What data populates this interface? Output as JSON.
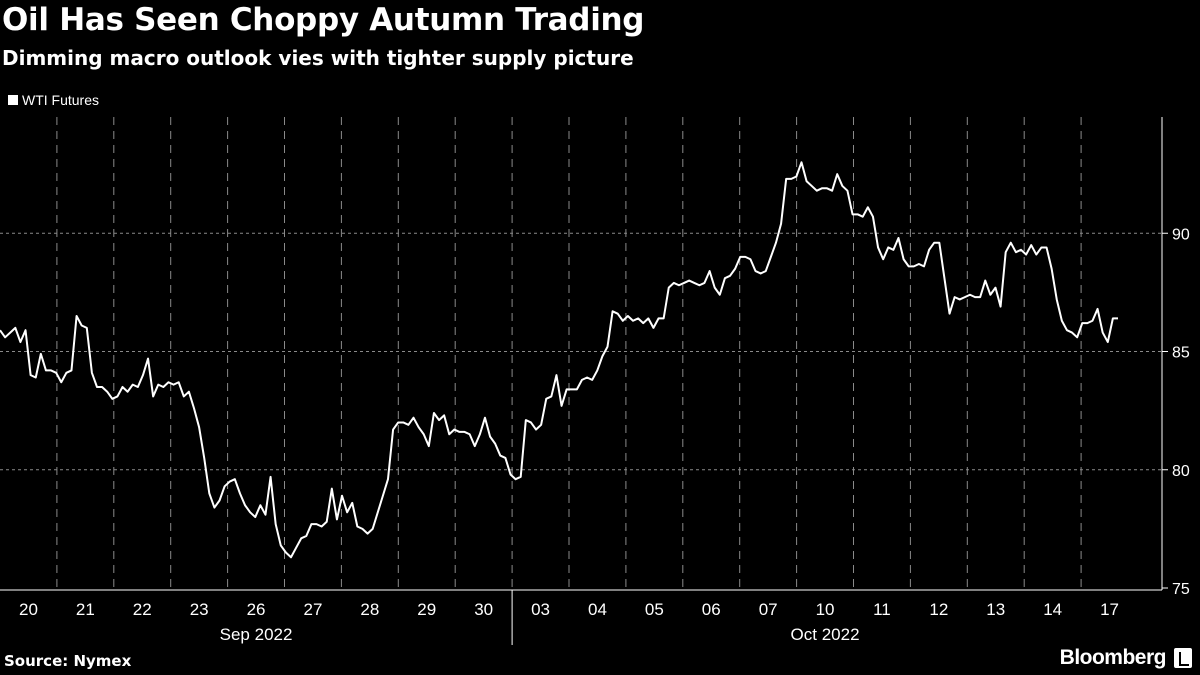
{
  "header": {
    "title": "Oil Has Seen Choppy Autumn Trading",
    "subtitle": "Dimming macro outlook vies with tighter supply picture"
  },
  "legend": {
    "label": "WTI Futures"
  },
  "footer": {
    "source": "Source: Nymex",
    "brand": "Bloomberg"
  },
  "colors": {
    "background": "#000000",
    "line": "#ffffff",
    "grid": "#8a8a8a"
  },
  "chart_data": {
    "type": "line",
    "grid": true,
    "legend_position": "top-left",
    "ylim": [
      75,
      95
    ],
    "y_ticks": [
      75,
      80,
      85,
      90
    ],
    "x_day_labels": [
      "20",
      "21",
      "22",
      "23",
      "26",
      "27",
      "28",
      "29",
      "30",
      "03",
      "04",
      "05",
      "06",
      "07",
      "10",
      "11",
      "12",
      "13",
      "14",
      "17"
    ],
    "x_month_labels": [
      "Sep 2022",
      "Oct 2022"
    ],
    "series": [
      {
        "name": "WTI Futures",
        "values": [
          85.9,
          85.6,
          85.8,
          86.0,
          85.4,
          85.9,
          84.0,
          83.9,
          84.9,
          84.2,
          84.2,
          84.1,
          83.7,
          84.1,
          84.2,
          86.5,
          86.1,
          86.0,
          84.1,
          83.5,
          83.5,
          83.3,
          83.0,
          83.1,
          83.5,
          83.3,
          83.6,
          83.5,
          84.0,
          84.7,
          83.1,
          83.6,
          83.5,
          83.7,
          83.6,
          83.7,
          83.1,
          83.3,
          82.6,
          81.8,
          80.5,
          79.0,
          78.4,
          78.7,
          79.3,
          79.5,
          79.6,
          79.0,
          78.5,
          78.2,
          78.0,
          78.5,
          78.1,
          79.7,
          77.7,
          76.8,
          76.5,
          76.3,
          76.7,
          77.1,
          77.2,
          77.7,
          77.7,
          77.6,
          77.8,
          79.2,
          77.9,
          78.9,
          78.2,
          78.6,
          77.6,
          77.5,
          77.3,
          77.5,
          78.2,
          78.9,
          79.6,
          81.7,
          82.0,
          82.0,
          81.9,
          82.2,
          81.8,
          81.5,
          81.0,
          82.4,
          82.1,
          82.3,
          81.5,
          81.7,
          81.6,
          81.6,
          81.5,
          81.0,
          81.5,
          82.2,
          81.4,
          81.1,
          80.6,
          80.5,
          79.8,
          79.6,
          79.7,
          82.1,
          82.0,
          81.7,
          81.9,
          83.0,
          83.1,
          84.0,
          82.7,
          83.4,
          83.4,
          83.4,
          83.8,
          83.9,
          83.8,
          84.2,
          84.8,
          85.2,
          86.7,
          86.6,
          86.3,
          86.5,
          86.3,
          86.4,
          86.2,
          86.4,
          86.0,
          86.4,
          86.4,
          87.7,
          87.9,
          87.8,
          87.9,
          88.0,
          87.9,
          87.8,
          87.9,
          88.4,
          87.7,
          87.4,
          88.1,
          88.2,
          88.5,
          89.0,
          89.0,
          88.9,
          88.4,
          88.3,
          88.4,
          89.0,
          89.6,
          90.4,
          92.3,
          92.3,
          92.4,
          93.0,
          92.2,
          92.0,
          91.8,
          91.9,
          91.9,
          91.8,
          92.5,
          92.0,
          91.8,
          90.8,
          90.8,
          90.7,
          91.1,
          90.7,
          89.4,
          88.9,
          89.4,
          89.3,
          89.8,
          88.9,
          88.6,
          88.6,
          88.7,
          88.6,
          89.3,
          89.6,
          89.6,
          88.1,
          86.6,
          87.3,
          87.2,
          87.3,
          87.4,
          87.3,
          87.3,
          88.0,
          87.4,
          87.7,
          86.9,
          89.2,
          89.6,
          89.2,
          89.3,
          89.1,
          89.5,
          89.1,
          89.4,
          89.4,
          88.5,
          87.2,
          86.3,
          85.9,
          85.8,
          85.6,
          86.2,
          86.2,
          86.3,
          86.8,
          85.8,
          85.4,
          86.4,
          86.4
        ]
      }
    ]
  }
}
